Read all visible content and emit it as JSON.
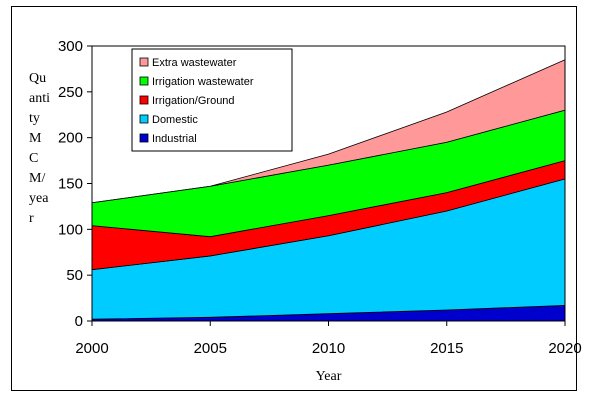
{
  "chart_data": {
    "type": "area",
    "stacked": true,
    "x": [
      2000,
      2005,
      2010,
      2015,
      2020
    ],
    "xlabel": "Year",
    "ylabel_lines": [
      "Qu",
      "anti",
      "ty",
      "M",
      "C",
      "M/",
      "yea",
      "r"
    ],
    "ylim": [
      0,
      300
    ],
    "yticks": [
      0,
      50,
      100,
      150,
      200,
      250,
      300
    ],
    "xticks": [
      2000,
      2005,
      2010,
      2015,
      2020
    ],
    "legend_position": "top-left",
    "series": [
      {
        "name": "Industrial",
        "color": "#0000cc",
        "values": [
          2,
          4,
          8,
          12,
          17
        ]
      },
      {
        "name": "Domestic",
        "color": "#00ccff",
        "values": [
          54,
          67,
          85,
          108,
          138
        ]
      },
      {
        "name": "Irrigation/Ground",
        "color": "#ff0000",
        "values": [
          48,
          21,
          22,
          20,
          20
        ]
      },
      {
        "name": "Irrigation wastewater",
        "color": "#00ff00",
        "values": [
          25,
          55,
          55,
          55,
          55
        ]
      },
      {
        "name": "Extra wastewater",
        "color": "#ff9999",
        "values": [
          0,
          0,
          12,
          33,
          55
        ]
      }
    ]
  }
}
